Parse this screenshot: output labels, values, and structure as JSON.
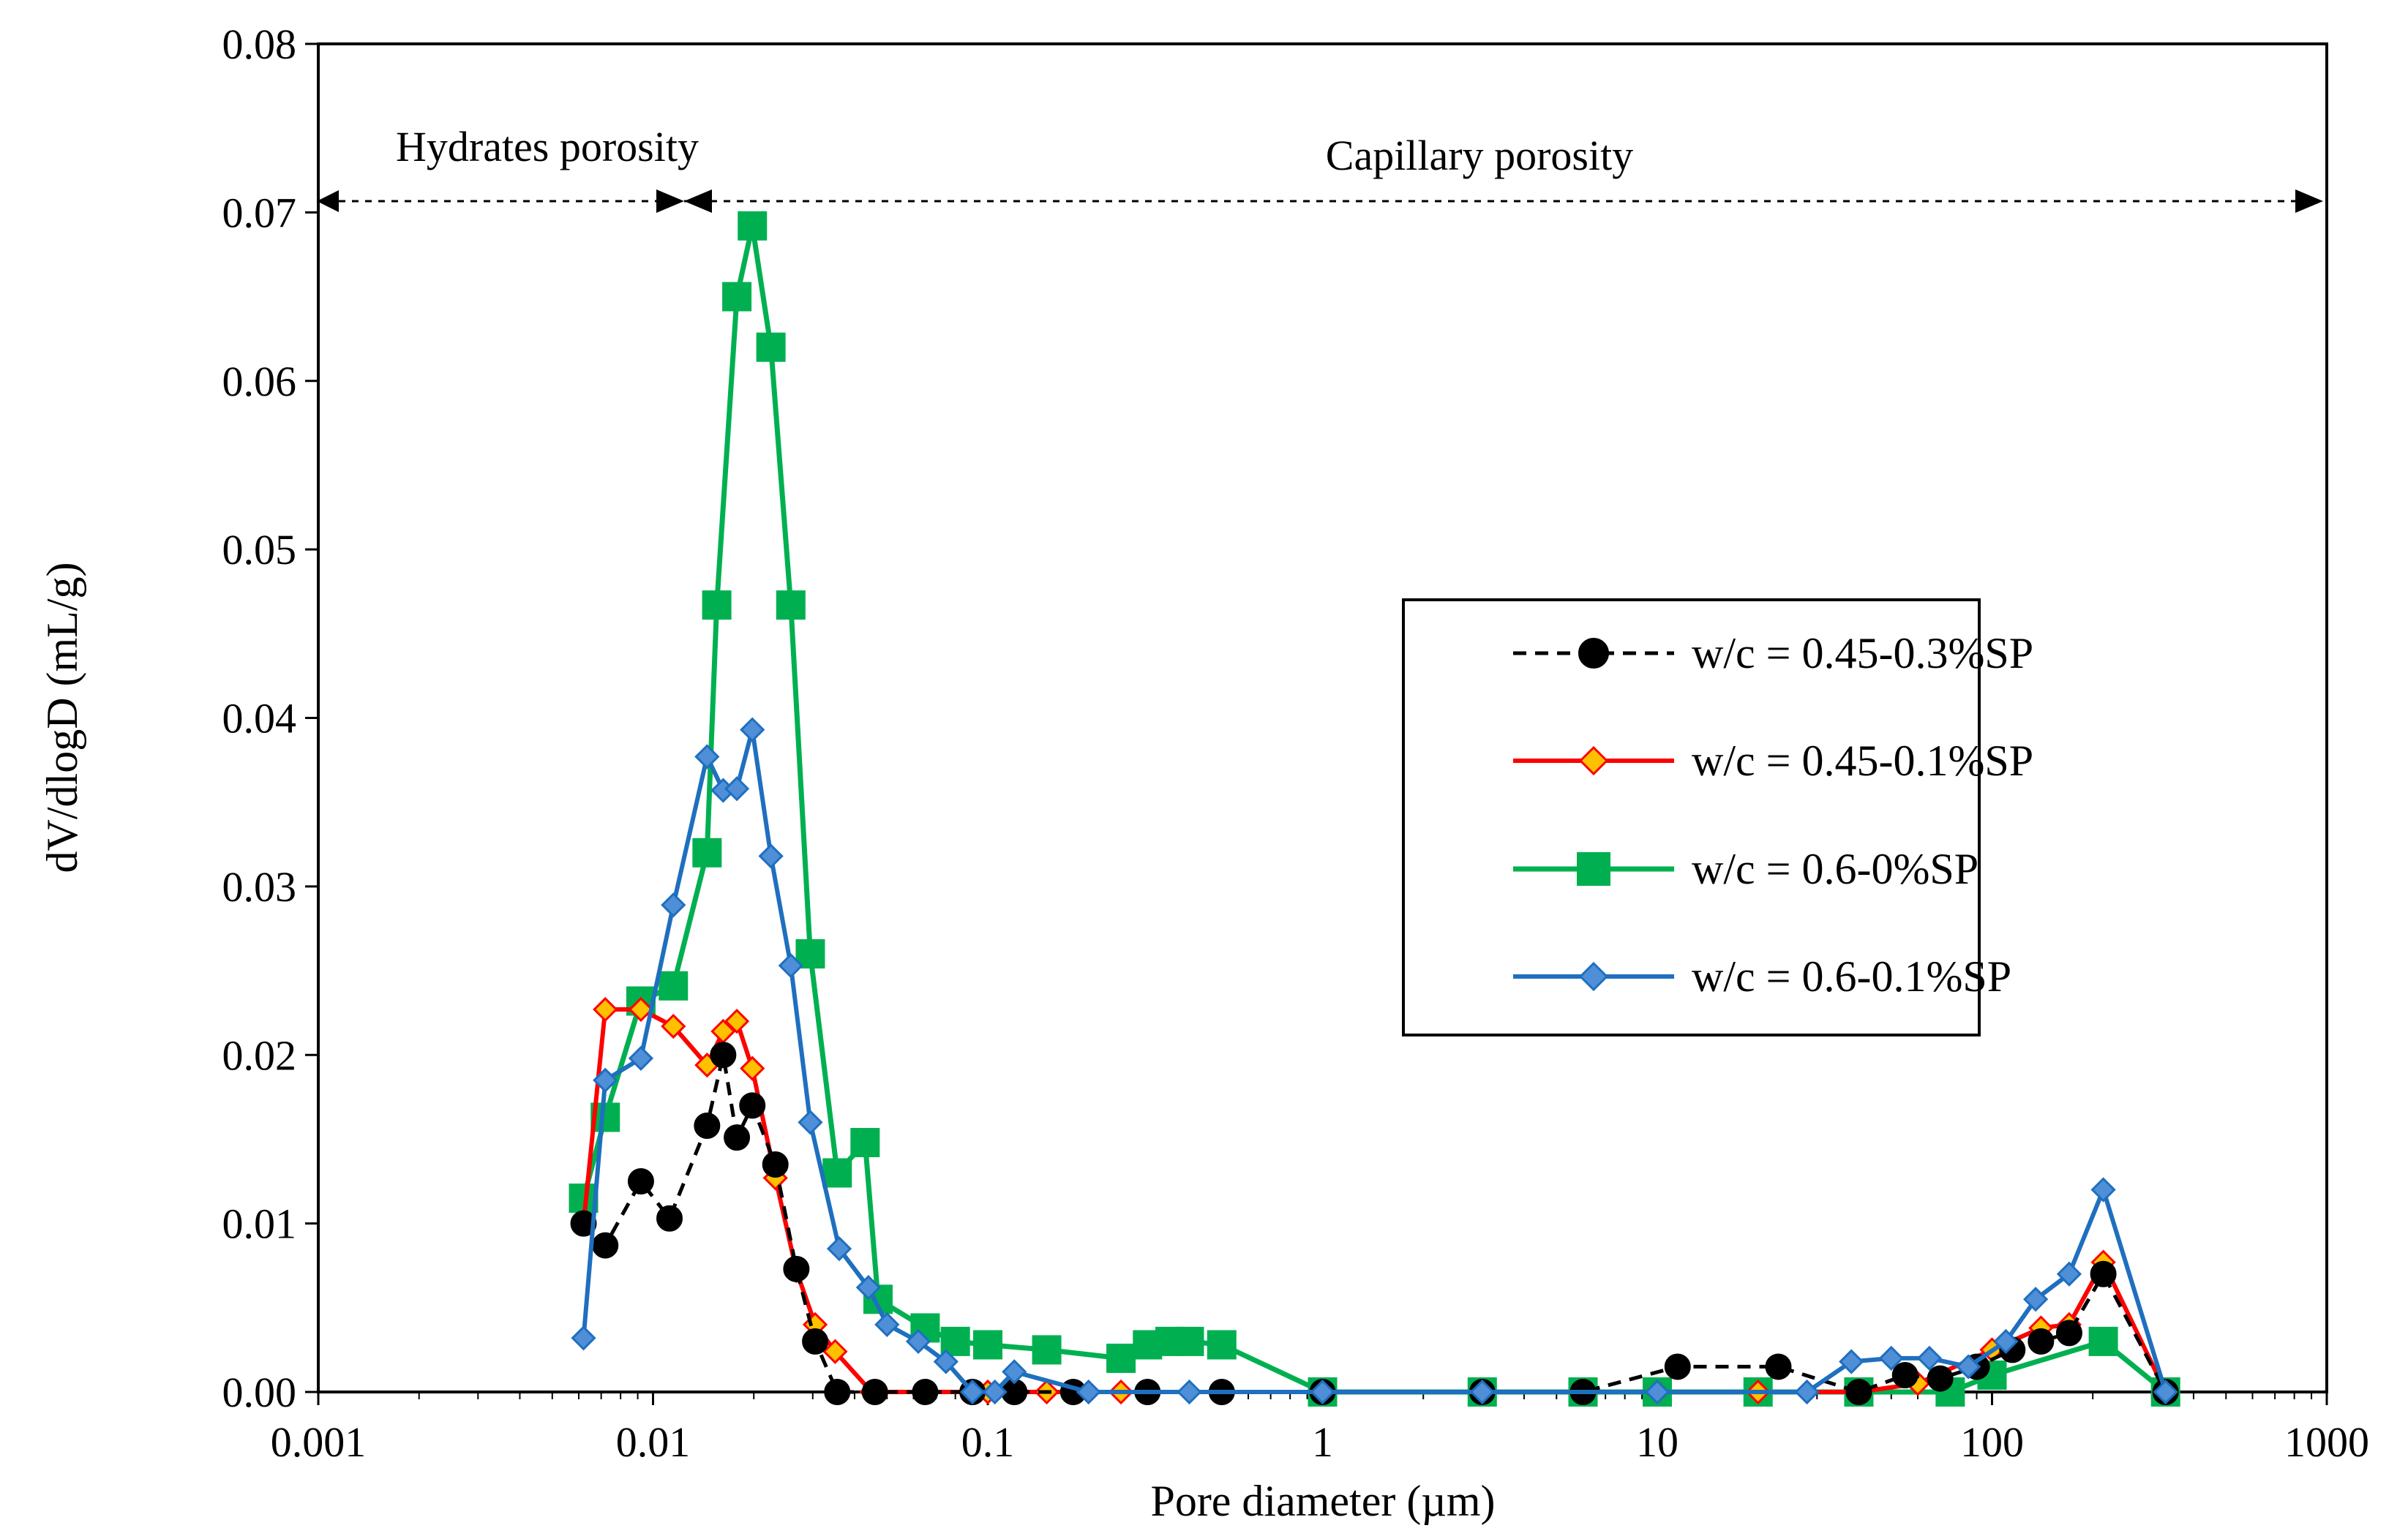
{
  "chart_data": {
    "type": "line",
    "xscale": "log",
    "xlabel": "Pore diameter (µm)",
    "ylabel": "dV/dlogD  (mL/g)",
    "xlim": [
      0.001,
      1000
    ],
    "ylim": [
      0,
      0.08
    ],
    "x_ticks": [
      0.001,
      0.01,
      0.1,
      1,
      10,
      100,
      1000
    ],
    "x_tick_labels": [
      "0.001",
      "0.01",
      "0.1",
      "1",
      "10",
      "100",
      "1000"
    ],
    "y_ticks": [
      0,
      0.01,
      0.02,
      0.03,
      0.04,
      0.05,
      0.06,
      0.07,
      0.08
    ],
    "y_tick_labels": [
      "0.00",
      "0.01",
      "0.02",
      "0.03",
      "0.04",
      "0.05",
      "0.06",
      "0.07",
      "0.08"
    ],
    "annotations": [
      {
        "text": "Hydrates porosity",
        "x_from": 0.001,
        "x_to": 0.0135,
        "y": 0.07
      },
      {
        "text": "Capillary porosity",
        "x_from": 0.0135,
        "x_to": 1000,
        "y": 0.07
      }
    ],
    "legend_position": "right",
    "series": [
      {
        "name": "w/c = 0.45-0.3%SP",
        "color": "#000000",
        "line": "dashed",
        "marker": "circle",
        "x": [
          0.0062,
          0.0072,
          0.0092,
          0.0112,
          0.0145,
          0.0162,
          0.0178,
          0.0198,
          0.0232,
          0.0268,
          0.0305,
          0.0355,
          0.046,
          0.065,
          0.09,
          0.12,
          0.18,
          0.3,
          0.5,
          1,
          3,
          6,
          11.5,
          23,
          40,
          55,
          70,
          90,
          115,
          140,
          170,
          215,
          330
        ],
        "y": [
          0.01,
          0.0087,
          0.0125,
          0.0103,
          0.0158,
          0.02,
          0.0151,
          0.017,
          0.0135,
          0.0073,
          0.003,
          0.0,
          0.0,
          0.0,
          0.0,
          0.0,
          0.0,
          0.0,
          0.0,
          0.0,
          0.0,
          0.0,
          0.0015,
          0.0015,
          0.0,
          0.001,
          0.0008,
          0.0015,
          0.0025,
          0.003,
          0.0035,
          0.007,
          0.0
        ]
      },
      {
        "name": "w/c = 0.45-0.1%SP",
        "color": "#ff0000",
        "marker_fill": "#ffc000",
        "line": "solid",
        "marker": "diamond",
        "x": [
          0.0062,
          0.0072,
          0.0092,
          0.0115,
          0.0145,
          0.0162,
          0.0178,
          0.0198,
          0.0232,
          0.0268,
          0.0305,
          0.035,
          0.045,
          0.065,
          0.1,
          0.15,
          0.25,
          0.5,
          1,
          3,
          6,
          10,
          20,
          40,
          60,
          100,
          140,
          170,
          215,
          330
        ],
        "y": [
          0.01,
          0.0227,
          0.0227,
          0.0217,
          0.0194,
          0.0214,
          0.022,
          0.0192,
          0.0127,
          0.0072,
          0.004,
          0.0024,
          0.0,
          0.0,
          0.0,
          0.0,
          0.0,
          0.0,
          0.0,
          0.0,
          0.0,
          0.0,
          0.0,
          0.0,
          0.0005,
          0.0025,
          0.0038,
          0.004,
          0.0077,
          0.0
        ]
      },
      {
        "name": "w/c = 0.6-0%SP",
        "color": "#00b050",
        "line": "solid",
        "marker": "square",
        "x": [
          0.0062,
          0.0072,
          0.0092,
          0.0115,
          0.0145,
          0.0155,
          0.0178,
          0.0198,
          0.0225,
          0.0258,
          0.0295,
          0.0355,
          0.043,
          0.047,
          0.065,
          0.08,
          0.1,
          0.15,
          0.25,
          0.3,
          0.35,
          0.4,
          0.5,
          1,
          3,
          6,
          10,
          20,
          40,
          75,
          100,
          215,
          330
        ],
        "y": [
          0.0115,
          0.0163,
          0.0232,
          0.0241,
          0.032,
          0.0467,
          0.065,
          0.0692,
          0.062,
          0.0467,
          0.026,
          0.013,
          0.0148,
          0.0055,
          0.0038,
          0.003,
          0.0028,
          0.0025,
          0.002,
          0.0028,
          0.003,
          0.003,
          0.0028,
          0.0,
          0.0,
          0.0,
          0.0,
          0.0,
          0.0,
          0.0,
          0.001,
          0.003,
          0.0
        ]
      },
      {
        "name": "w/c = 0.6-0.1%SP",
        "color": "#1f6fbf",
        "marker_fill": "#4f8fd7",
        "line": "solid",
        "marker": "diamond",
        "x": [
          0.0062,
          0.0072,
          0.0092,
          0.0115,
          0.0145,
          0.0162,
          0.0178,
          0.0198,
          0.0225,
          0.0258,
          0.0295,
          0.036,
          0.044,
          0.05,
          0.062,
          0.075,
          0.09,
          0.105,
          0.12,
          0.2,
          0.4,
          1,
          3,
          10,
          28,
          38,
          50,
          65,
          85,
          110,
          135,
          170,
          215,
          330
        ],
        "y": [
          0.0032,
          0.0185,
          0.0198,
          0.0289,
          0.0377,
          0.0357,
          0.0358,
          0.0393,
          0.0318,
          0.0253,
          0.016,
          0.0085,
          0.0062,
          0.004,
          0.003,
          0.0018,
          0.0,
          0.0,
          0.0012,
          0.0,
          0.0,
          0.0,
          0.0,
          0.0,
          0.0,
          0.0018,
          0.002,
          0.002,
          0.0015,
          0.003,
          0.0055,
          0.007,
          0.012,
          0.0
        ]
      }
    ]
  }
}
